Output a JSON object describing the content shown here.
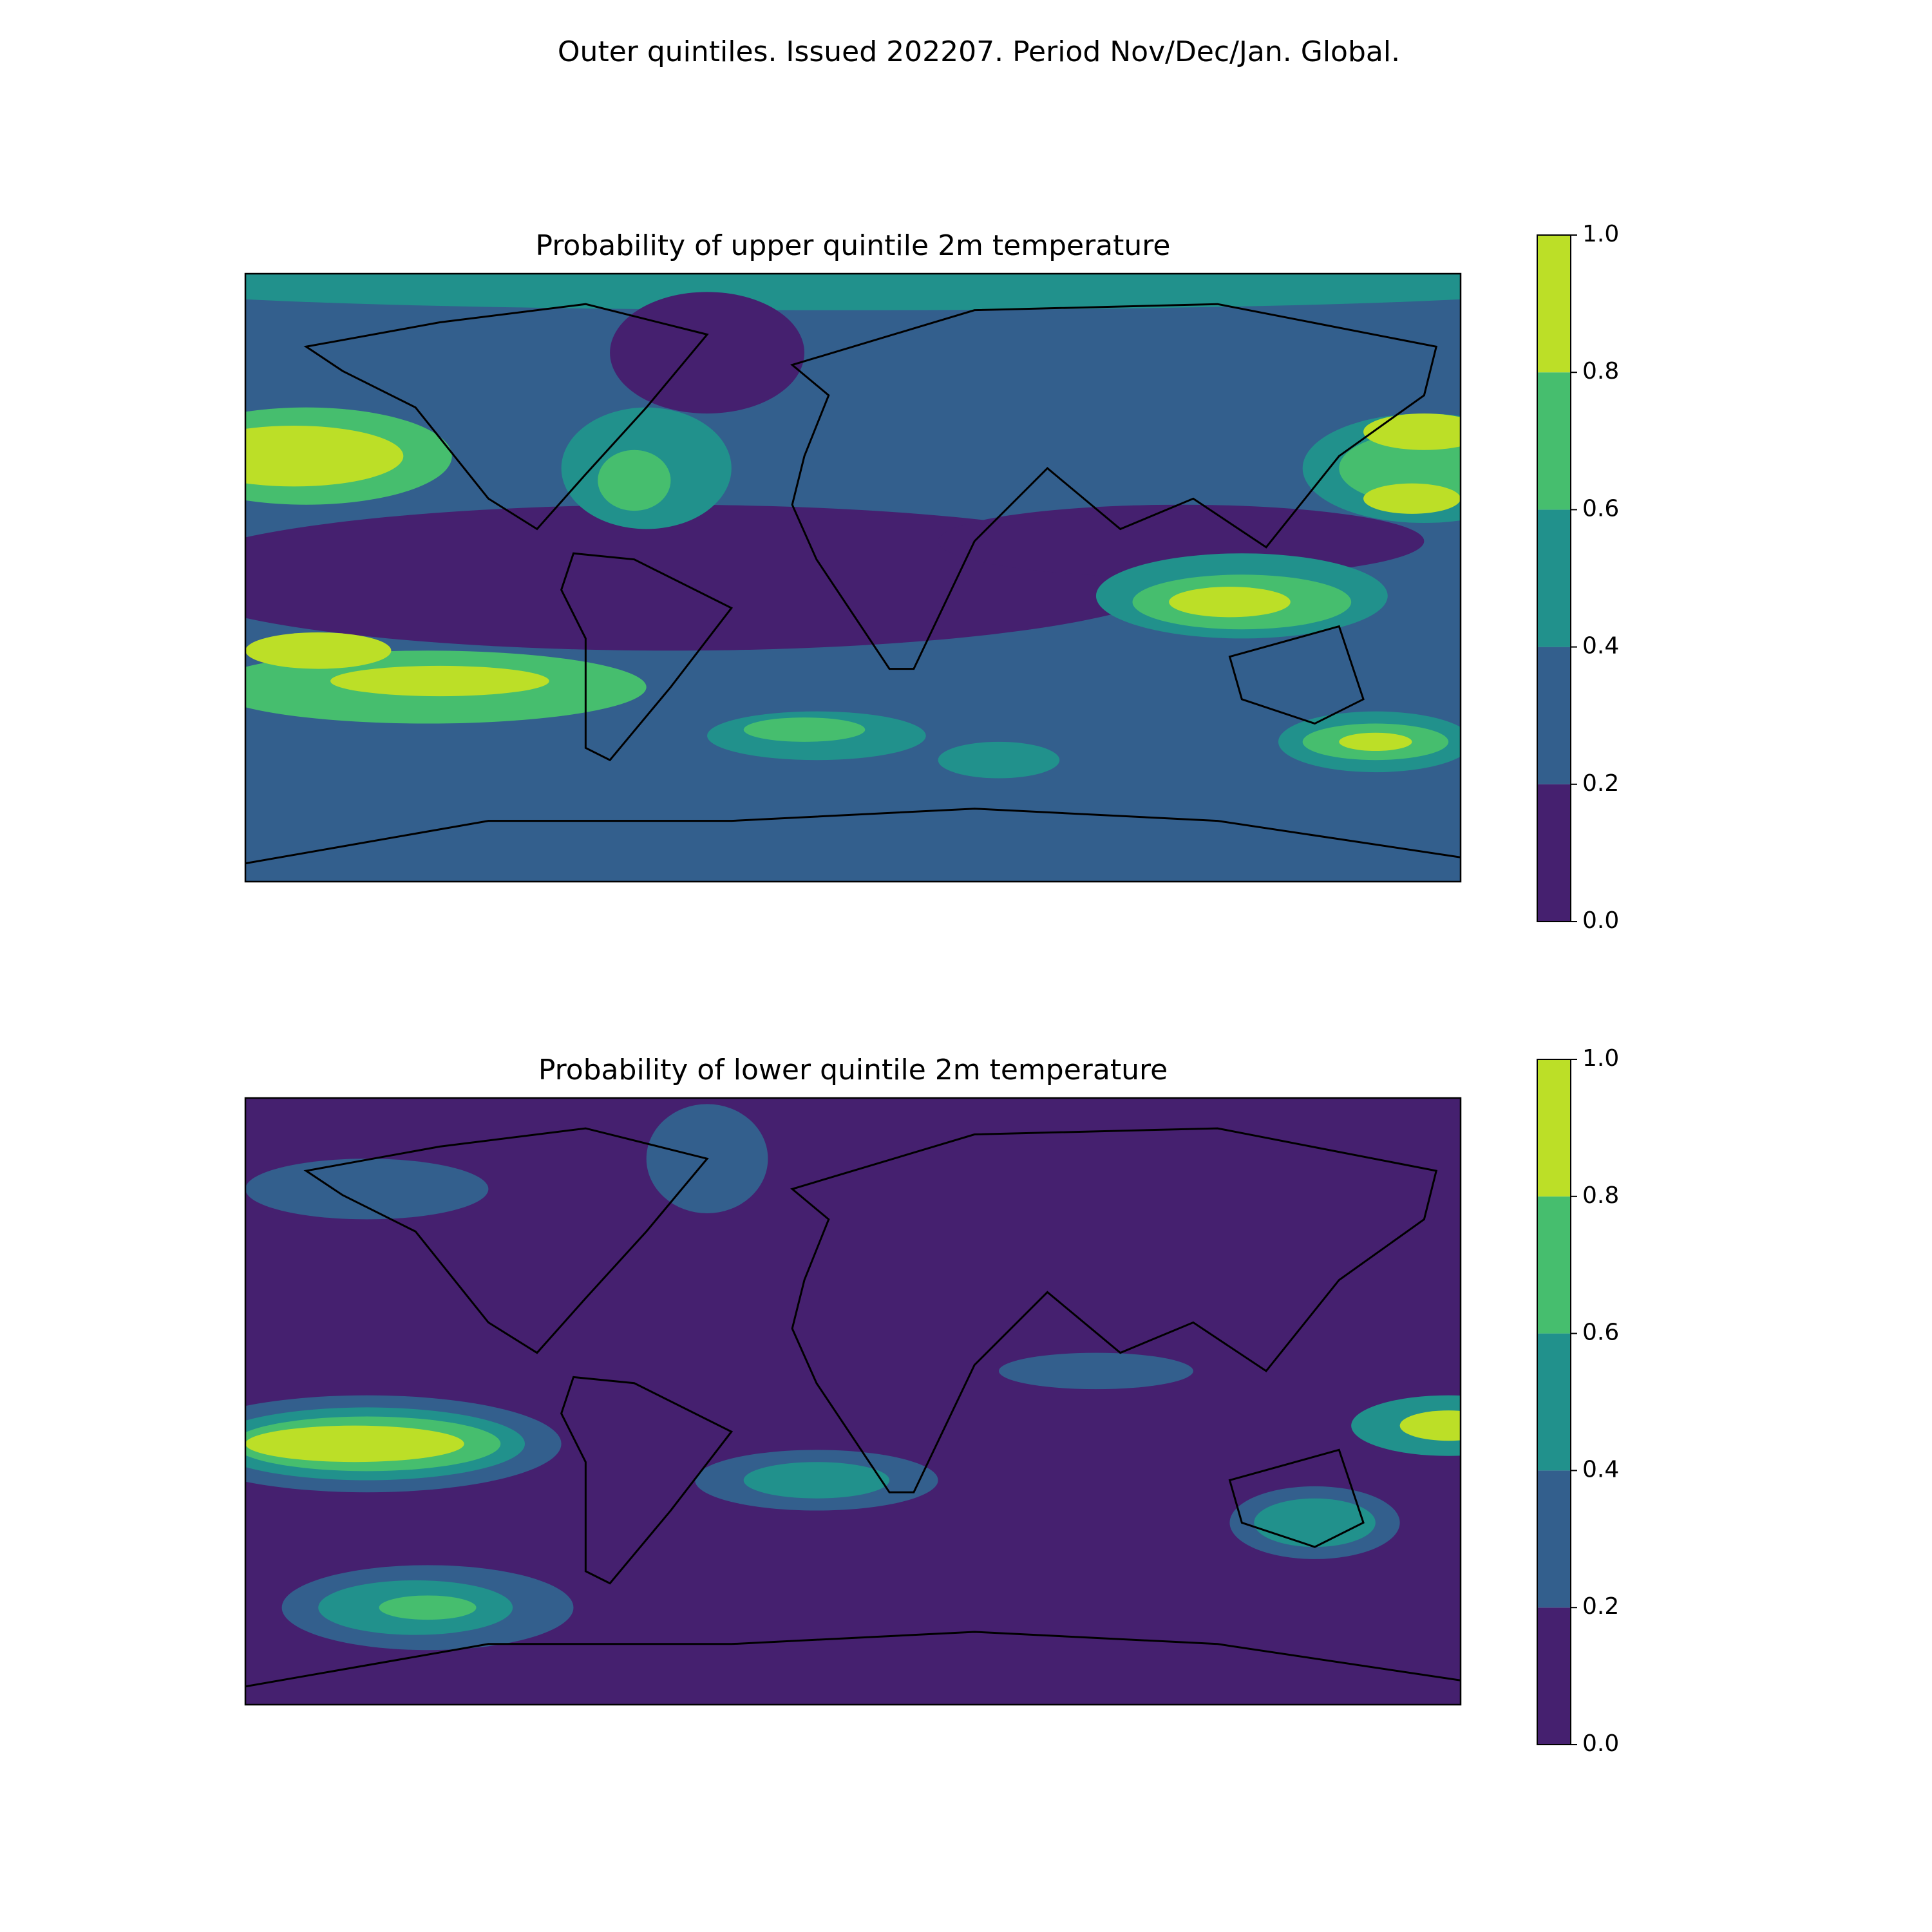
{
  "title": "Outer quintiles. Issued 202207. Period Nov/Dec/Jan. Global.",
  "panels": [
    {
      "title": "Probability of upper quintile 2m temperature",
      "colorbar": {
        "colors": [
          "#45206f",
          "#335f8d",
          "#21918c",
          "#46be6e",
          "#bcdf27"
        ],
        "ticks": [
          {
            "value": 0,
            "label": "0.0"
          },
          0.2,
          0.4,
          0.6,
          0.8,
          {
            "value": 1,
            "label": "1.0"
          }
        ]
      }
    },
    {
      "title": "Probability of lower quintile 2m temperature",
      "colorbar": {
        "colors": [
          "#45206f",
          "#335f8d",
          "#21918c",
          "#46be6e",
          "#bcdf27"
        ],
        "ticks": [
          {
            "value": 0,
            "label": "0.0"
          },
          0.2,
          0.4,
          0.6,
          0.8,
          {
            "value": 1,
            "label": "1.0"
          }
        ]
      }
    }
  ]
}
